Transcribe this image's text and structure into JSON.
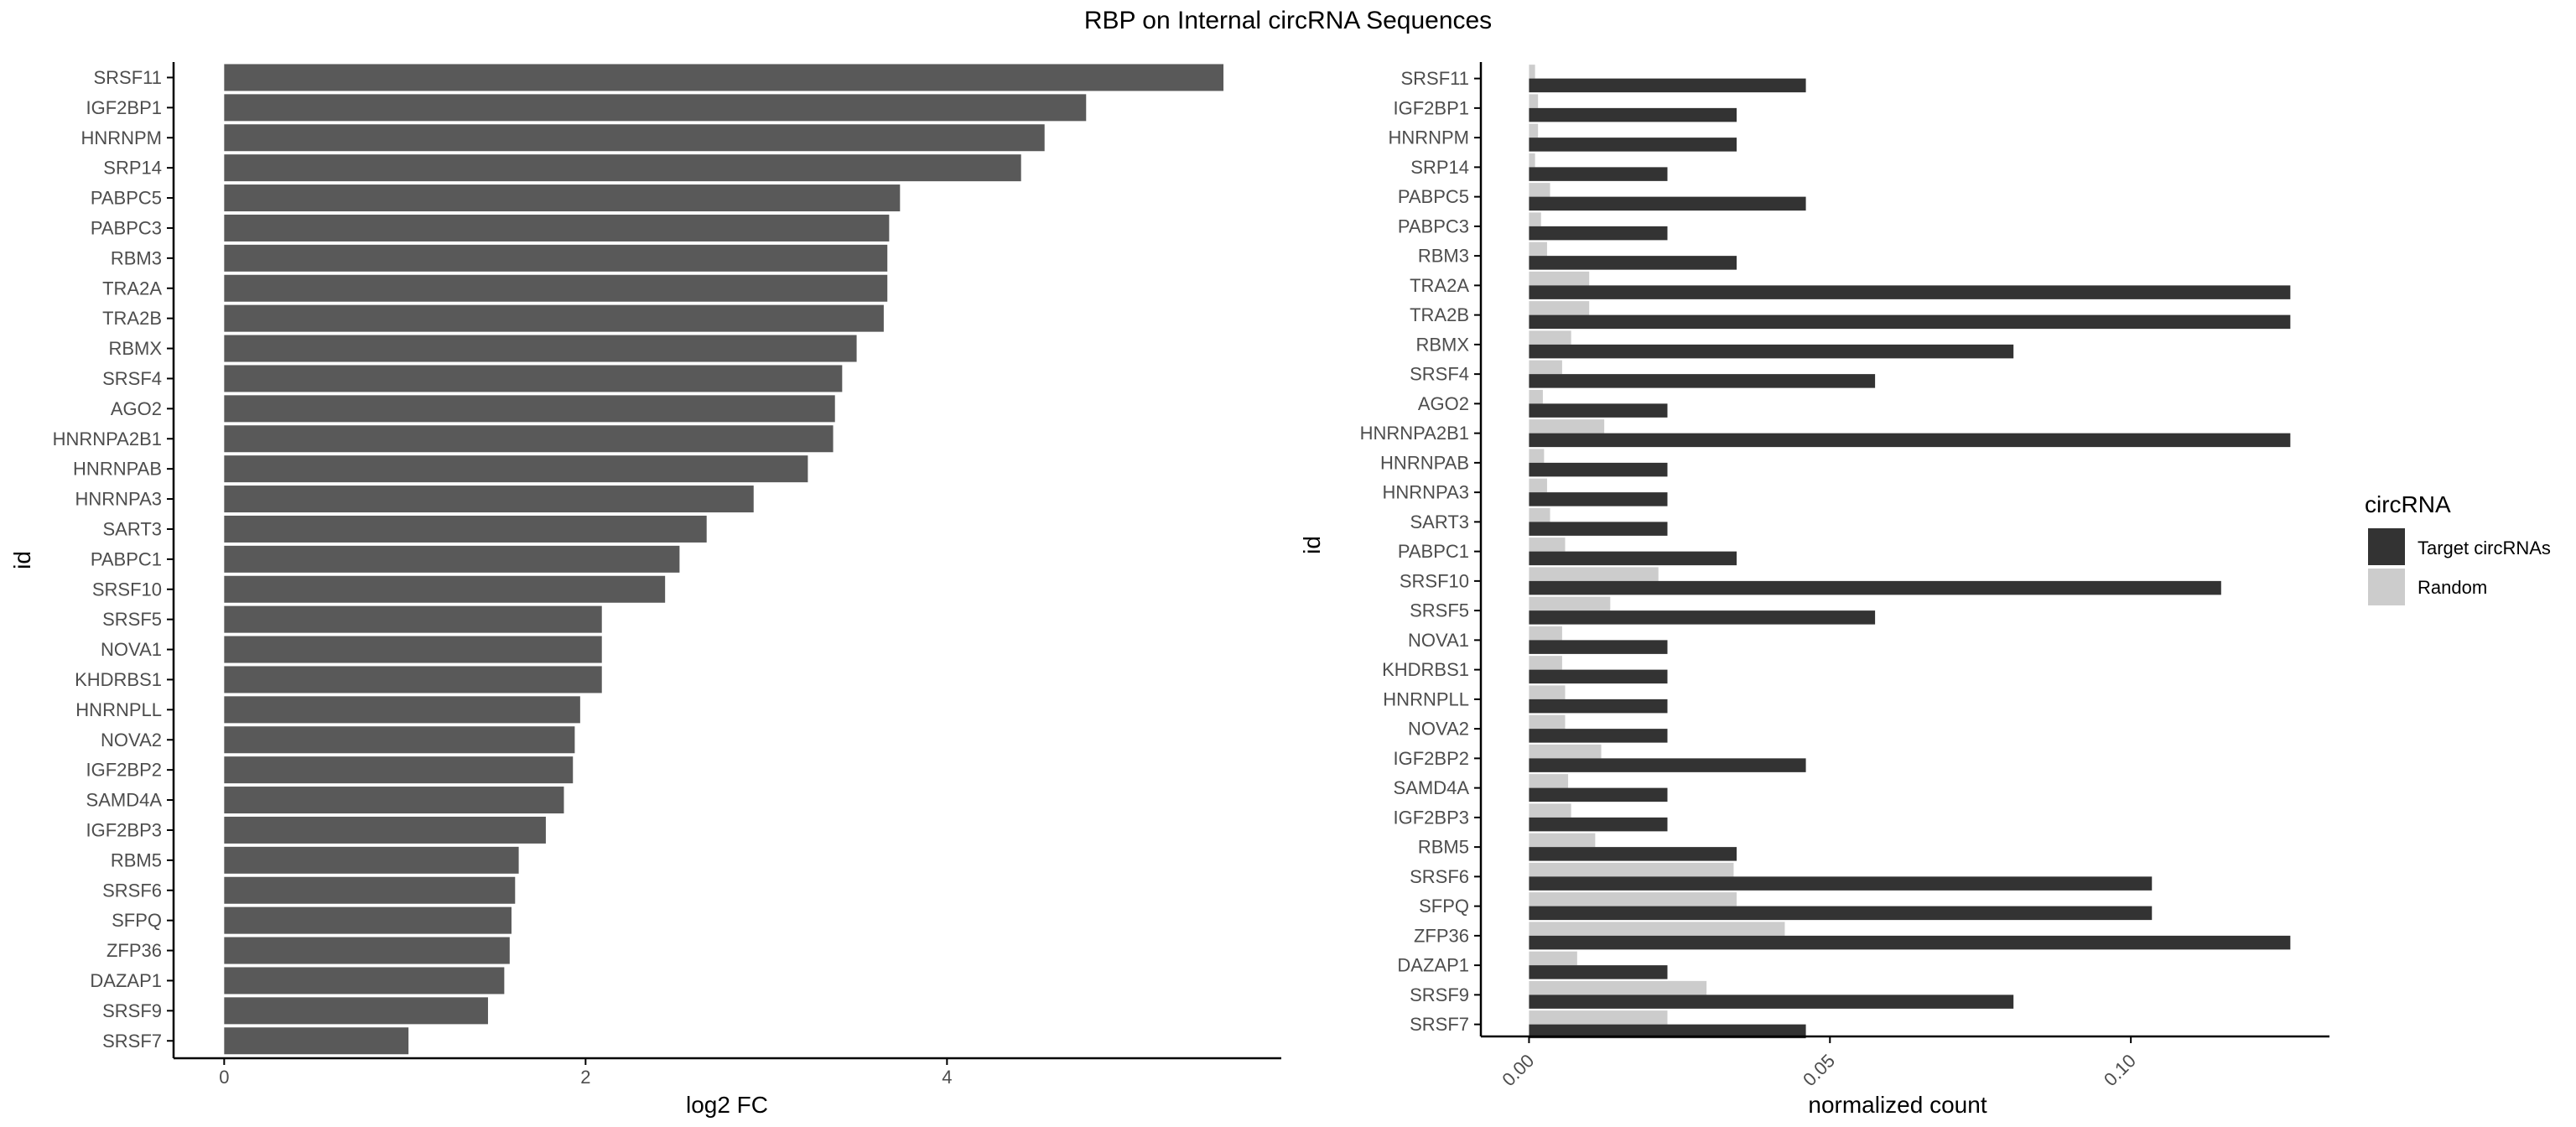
{
  "title": "RBP on Internal circRNA Sequences",
  "colors": {
    "bar_fc": "#595959",
    "target": "#333333",
    "random": "#cccccc",
    "axis": "#000000",
    "tick_text": "#4d4d4d"
  },
  "chart_data": [
    {
      "type": "bar",
      "orientation": "horizontal",
      "xlabel": "log2 FC",
      "ylabel": "id",
      "xlim": [
        -0.28,
        5.85
      ],
      "xticks": [
        0,
        2,
        4
      ],
      "categories": [
        "SRSF11",
        "IGF2BP1",
        "HNRNPM",
        "SRP14",
        "PABPC5",
        "PABPC3",
        "RBM3",
        "TRA2A",
        "TRA2B",
        "RBMX",
        "SRSF4",
        "AGO2",
        "HNRNPA2B1",
        "HNRNPAB",
        "HNRNPA3",
        "SART3",
        "PABPC1",
        "SRSF10",
        "SRSF5",
        "NOVA1",
        "KHDRBS1",
        "HNRNPLL",
        "NOVA2",
        "IGF2BP2",
        "SAMD4A",
        "IGF2BP3",
        "RBM5",
        "SRSF6",
        "SFPQ",
        "ZFP36",
        "DAZAP1",
        "SRSF9",
        "SRSF7"
      ],
      "values": [
        5.53,
        4.77,
        4.54,
        4.41,
        3.74,
        3.68,
        3.67,
        3.67,
        3.65,
        3.5,
        3.42,
        3.38,
        3.37,
        3.23,
        2.93,
        2.67,
        2.52,
        2.44,
        2.09,
        2.09,
        2.09,
        1.97,
        1.94,
        1.93,
        1.88,
        1.78,
        1.63,
        1.61,
        1.59,
        1.58,
        1.55,
        1.46,
        1.02
      ]
    },
    {
      "type": "bar",
      "orientation": "horizontal",
      "grouped": true,
      "xlabel": "normalized count",
      "ylabel": "id",
      "xlim": [
        -0.008,
        0.133
      ],
      "xticks": [
        0.0,
        0.05,
        0.1
      ],
      "xtick_labels": [
        "0.00",
        "0.05",
        "0.10"
      ],
      "legend_title": "circRNA",
      "legend_position": "right",
      "categories": [
        "SRSF11",
        "IGF2BP1",
        "HNRNPM",
        "SRP14",
        "PABPC5",
        "PABPC3",
        "RBM3",
        "TRA2A",
        "TRA2B",
        "RBMX",
        "SRSF4",
        "AGO2",
        "HNRNPA2B1",
        "HNRNPAB",
        "HNRNPA3",
        "SART3",
        "PABPC1",
        "SRSF10",
        "SRSF5",
        "NOVA1",
        "KHDRBS1",
        "HNRNPLL",
        "NOVA2",
        "IGF2BP2",
        "SAMD4A",
        "IGF2BP3",
        "RBM5",
        "SRSF6",
        "SFPQ",
        "ZFP36",
        "DAZAP1",
        "SRSF9",
        "SRSF7"
      ],
      "series": [
        {
          "name": "Target circRNAs",
          "values": [
            0.046,
            0.0345,
            0.0345,
            0.023,
            0.046,
            0.023,
            0.0345,
            0.1265,
            0.1265,
            0.0805,
            0.0575,
            0.023,
            0.1265,
            0.023,
            0.023,
            0.023,
            0.0345,
            0.115,
            0.0575,
            0.023,
            0.023,
            0.023,
            0.023,
            0.046,
            0.023,
            0.023,
            0.0345,
            0.1035,
            0.1035,
            0.1265,
            0.023,
            0.0805,
            0.046
          ]
        },
        {
          "name": "Random",
          "values": [
            0.001,
            0.0015,
            0.0015,
            0.001,
            0.0035,
            0.002,
            0.003,
            0.01,
            0.01,
            0.007,
            0.0055,
            0.0023,
            0.0125,
            0.0025,
            0.003,
            0.0035,
            0.006,
            0.0215,
            0.0135,
            0.0055,
            0.0055,
            0.006,
            0.006,
            0.012,
            0.0065,
            0.007,
            0.011,
            0.034,
            0.0345,
            0.0425,
            0.008,
            0.0295,
            0.023
          ]
        }
      ]
    }
  ]
}
